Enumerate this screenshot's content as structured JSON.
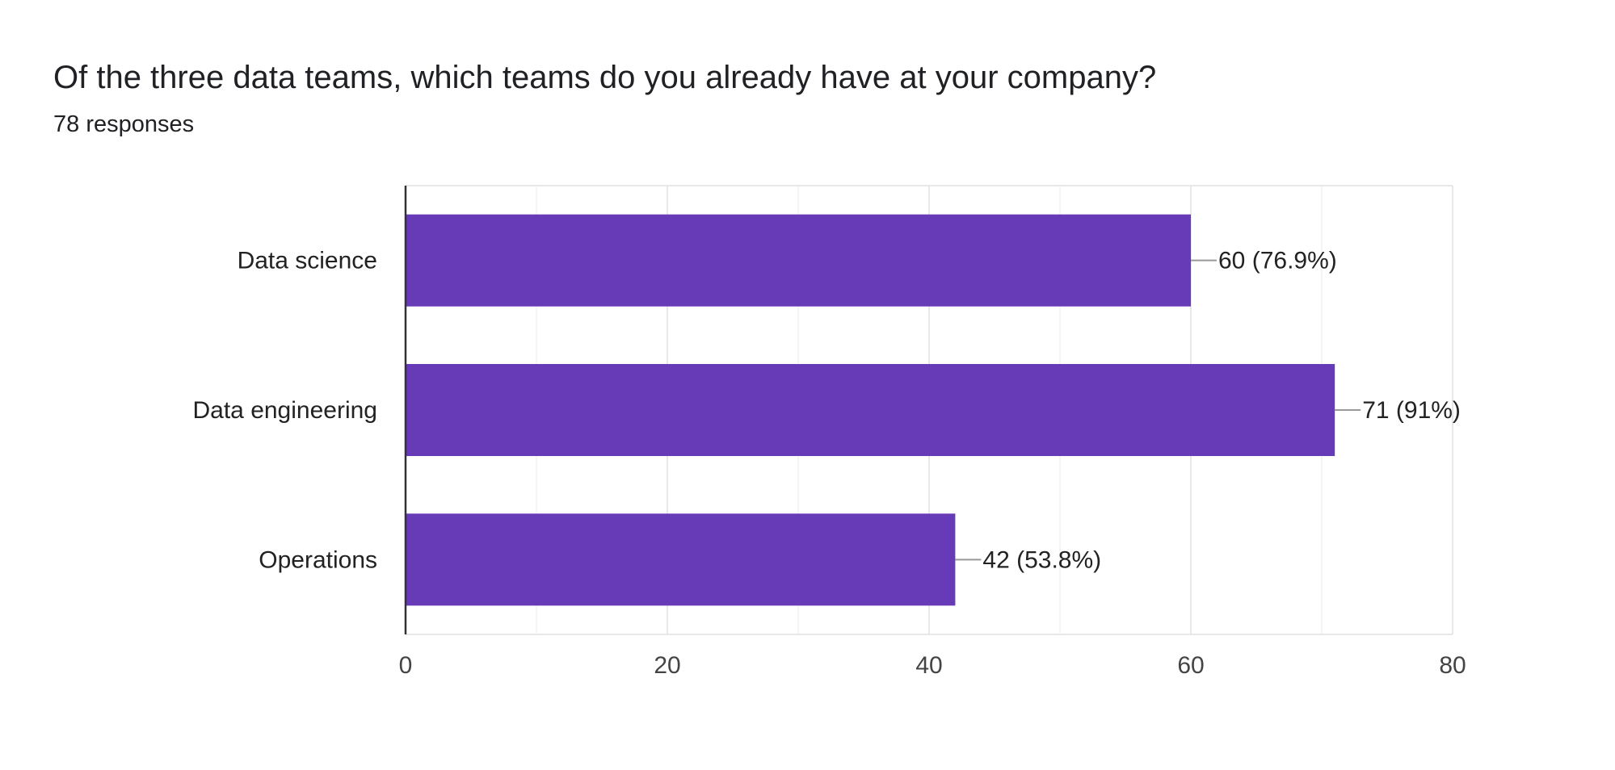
{
  "question": {
    "title": "Of the three data teams, which teams do you already have at your company?",
    "responses": "78 responses"
  },
  "colors": {
    "bar": "#673ab7",
    "grid": "#e8e8e8",
    "axis": "#333333",
    "leader": "#999999"
  },
  "chart_data": {
    "type": "bar",
    "orientation": "horizontal",
    "categories": [
      "Data science",
      "Data engineering",
      "Operations"
    ],
    "values": [
      60,
      71,
      42
    ],
    "data_labels": [
      "60 (76.9%)",
      "71 (91%)",
      "42 (53.8%)"
    ],
    "xlim": [
      0,
      80
    ],
    "xticks": [
      0,
      20,
      40,
      60,
      80
    ],
    "xtick_labels": [
      "0",
      "20",
      "40",
      "60",
      "80"
    ],
    "minor_gridlines": [
      10,
      30,
      50,
      70
    ],
    "grid": true,
    "legend": "none"
  }
}
